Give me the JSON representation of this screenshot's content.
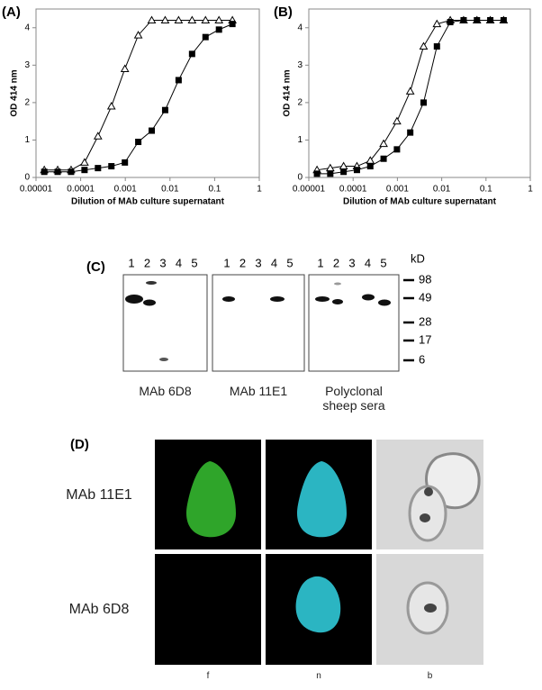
{
  "chart_data": [
    {
      "type": "line",
      "panel": "(A)",
      "xlabel": "Dilution of MAb culture supernatant",
      "ylabel": "OD 414 nm",
      "log_x": true,
      "x": [
        1.53e-05,
        3.05e-05,
        6.1e-05,
        0.000122,
        0.000244,
        0.000488,
        0.000977,
        0.00195,
        0.0039,
        0.0078,
        0.0156,
        0.03125,
        0.0625,
        0.125,
        0.25
      ],
      "series": [
        {
          "marker": "triangle",
          "color": "#000000",
          "values": [
            0.2,
            0.2,
            0.2,
            0.4,
            1.1,
            1.9,
            2.9,
            3.8,
            4.2,
            4.2,
            4.2,
            4.2,
            4.2,
            4.2,
            4.2
          ]
        },
        {
          "marker": "square",
          "color": "#000000",
          "values": [
            0.15,
            0.15,
            0.15,
            0.2,
            0.25,
            0.3,
            0.4,
            0.95,
            1.25,
            1.8,
            2.6,
            3.3,
            3.75,
            3.95,
            4.1
          ]
        }
      ],
      "xlim": [
        1e-05,
        1
      ],
      "xticks": [
        {
          "value": 1e-05,
          "label": "0.00001"
        },
        {
          "value": 0.0001,
          "label": "0.0001"
        },
        0.001,
        0.01,
        0.1,
        1
      ],
      "ylim": [
        0,
        4.5
      ],
      "yticks": [
        0,
        1,
        2,
        3,
        4
      ]
    },
    {
      "type": "line",
      "panel": "(B)",
      "xlabel": "Dilution of MAb culture supernatant",
      "ylabel": "OD 414 nm",
      "log_x": true,
      "x": [
        1.53e-05,
        3.05e-05,
        6.1e-05,
        0.000122,
        0.000244,
        0.000488,
        0.000977,
        0.00195,
        0.0039,
        0.0078,
        0.0156,
        0.03125,
        0.0625,
        0.125,
        0.25
      ],
      "series": [
        {
          "marker": "triangle",
          "color": "#000000",
          "values": [
            0.2,
            0.25,
            0.3,
            0.3,
            0.45,
            0.9,
            1.5,
            2.3,
            3.5,
            4.1,
            4.2,
            4.2,
            4.2,
            4.2,
            4.2
          ]
        },
        {
          "marker": "square",
          "color": "#000000",
          "values": [
            0.1,
            0.1,
            0.15,
            0.2,
            0.3,
            0.5,
            0.75,
            1.2,
            2.0,
            3.5,
            4.15,
            4.2,
            4.2,
            4.2,
            4.2
          ]
        }
      ],
      "xlim": [
        1e-05,
        1
      ],
      "xticks": [
        {
          "value": 1e-05,
          "label": "0.00001"
        },
        {
          "value": 0.0001,
          "label": "0.0001"
        },
        0.001,
        0.01,
        0.1,
        1
      ],
      "ylim": [
        0,
        4.5
      ],
      "yticks": [
        0,
        1,
        2,
        3,
        4
      ]
    }
  ],
  "blot": {
    "panel": "(C)",
    "unit": "kD",
    "markers": [
      98,
      49,
      28,
      17,
      6
    ],
    "lanes": [
      "1",
      "2",
      "3",
      "4",
      "5"
    ],
    "groups": [
      "MAb 6D8",
      "MAb 11E1",
      "Polyclonal sheep sera"
    ]
  },
  "micrograph": {
    "panel": "(D)",
    "rows": [
      "MAb 11E1",
      "MAb 6D8"
    ],
    "columns": [
      "f",
      "n",
      "b"
    ]
  }
}
